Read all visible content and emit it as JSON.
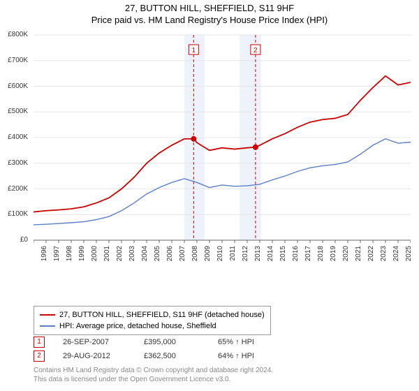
{
  "title": {
    "line1": "27, BUTTON HILL, SHEFFIELD, S11 9HF",
    "line2": "Price paid vs. HM Land Registry's House Price Index (HPI)",
    "fontsize": 13,
    "color": "#000000"
  },
  "chart": {
    "type": "line",
    "background_color": "#ffffff",
    "grid_color": "#e5e5e5",
    "xlim": [
      1995,
      2025
    ],
    "ylim": [
      0,
      800000
    ],
    "ytick_step": 100000,
    "ytick_labels": [
      "£0",
      "£100K",
      "£200K",
      "£300K",
      "£400K",
      "£500K",
      "£600K",
      "£700K",
      "£800K"
    ],
    "xtick_step": 1,
    "xtick_labels": [
      "1995",
      "1996",
      "1997",
      "1998",
      "1999",
      "2000",
      "2001",
      "2002",
      "2003",
      "2004",
      "2005",
      "2006",
      "2007",
      "2008",
      "2009",
      "2010",
      "2011",
      "2012",
      "2013",
      "2014",
      "2015",
      "2016",
      "2017",
      "2018",
      "2019",
      "2020",
      "2021",
      "2022",
      "2023",
      "2024",
      "2025"
    ],
    "tick_fontsize": 10,
    "tick_color": "#333333",
    "shaded_bands": [
      {
        "x_from": 2007.0,
        "x_to": 2008.6,
        "color": "#eef2fb"
      },
      {
        "x_from": 2011.4,
        "x_to": 2013.1,
        "color": "#eef2fb"
      }
    ],
    "event_lines": [
      {
        "x": 2007.74,
        "label": "1",
        "color": "#cc0000",
        "dash": "4,3"
      },
      {
        "x": 2012.66,
        "label": "2",
        "color": "#cc0000",
        "dash": "4,3"
      }
    ],
    "event_markers": [
      {
        "x": 2007.74,
        "y": 395000,
        "color": "#cc0000",
        "radius": 4
      },
      {
        "x": 2012.66,
        "y": 362500,
        "color": "#cc0000",
        "radius": 4
      }
    ],
    "series": [
      {
        "name": "price_paid",
        "color": "#cc0000",
        "width": 1.8,
        "points": [
          [
            1995,
            110000
          ],
          [
            1996,
            115000
          ],
          [
            1997,
            118000
          ],
          [
            1998,
            122000
          ],
          [
            1999,
            130000
          ],
          [
            2000,
            145000
          ],
          [
            2001,
            165000
          ],
          [
            2002,
            200000
          ],
          [
            2003,
            245000
          ],
          [
            2004,
            300000
          ],
          [
            2005,
            340000
          ],
          [
            2006,
            370000
          ],
          [
            2007,
            395000
          ],
          [
            2007.74,
            395000
          ],
          [
            2008,
            380000
          ],
          [
            2009,
            350000
          ],
          [
            2010,
            360000
          ],
          [
            2011,
            355000
          ],
          [
            2012,
            360000
          ],
          [
            2012.66,
            362500
          ],
          [
            2013,
            370000
          ],
          [
            2014,
            395000
          ],
          [
            2015,
            415000
          ],
          [
            2016,
            440000
          ],
          [
            2017,
            460000
          ],
          [
            2018,
            470000
          ],
          [
            2019,
            475000
          ],
          [
            2020,
            490000
          ],
          [
            2021,
            545000
          ],
          [
            2022,
            595000
          ],
          [
            2023,
            640000
          ],
          [
            2024,
            605000
          ],
          [
            2025,
            615000
          ]
        ]
      },
      {
        "name": "hpi",
        "color": "#5b7fc7",
        "width": 1.4,
        "points": [
          [
            1995,
            60000
          ],
          [
            1996,
            62000
          ],
          [
            1997,
            65000
          ],
          [
            1998,
            68000
          ],
          [
            1999,
            72000
          ],
          [
            2000,
            80000
          ],
          [
            2001,
            92000
          ],
          [
            2002,
            115000
          ],
          [
            2003,
            145000
          ],
          [
            2004,
            180000
          ],
          [
            2005,
            205000
          ],
          [
            2006,
            225000
          ],
          [
            2007,
            240000
          ],
          [
            2008,
            225000
          ],
          [
            2009,
            205000
          ],
          [
            2010,
            215000
          ],
          [
            2011,
            210000
          ],
          [
            2012,
            212000
          ],
          [
            2013,
            218000
          ],
          [
            2014,
            235000
          ],
          [
            2015,
            250000
          ],
          [
            2016,
            268000
          ],
          [
            2017,
            282000
          ],
          [
            2018,
            290000
          ],
          [
            2019,
            295000
          ],
          [
            2020,
            305000
          ],
          [
            2021,
            335000
          ],
          [
            2022,
            370000
          ],
          [
            2023,
            395000
          ],
          [
            2024,
            378000
          ],
          [
            2025,
            382000
          ]
        ]
      }
    ]
  },
  "legend": {
    "items": [
      {
        "color": "#cc0000",
        "label": "27, BUTTON HILL, SHEFFIELD, S11 9HF (detached house)"
      },
      {
        "color": "#5b7fc7",
        "label": "HPI: Average price, detached house, Sheffield"
      }
    ]
  },
  "sales": [
    {
      "n": "1",
      "date": "26-SEP-2007",
      "price": "£395,000",
      "hpi": "65% ↑ HPI",
      "border_color": "#cc0000"
    },
    {
      "n": "2",
      "date": "29-AUG-2012",
      "price": "£362,500",
      "hpi": "64% ↑ HPI",
      "border_color": "#cc0000"
    }
  ],
  "footer": {
    "line1": "Contains HM Land Registry data © Crown copyright and database right 2024.",
    "line2": "This data is licensed under the Open Government Licence v3.0."
  }
}
